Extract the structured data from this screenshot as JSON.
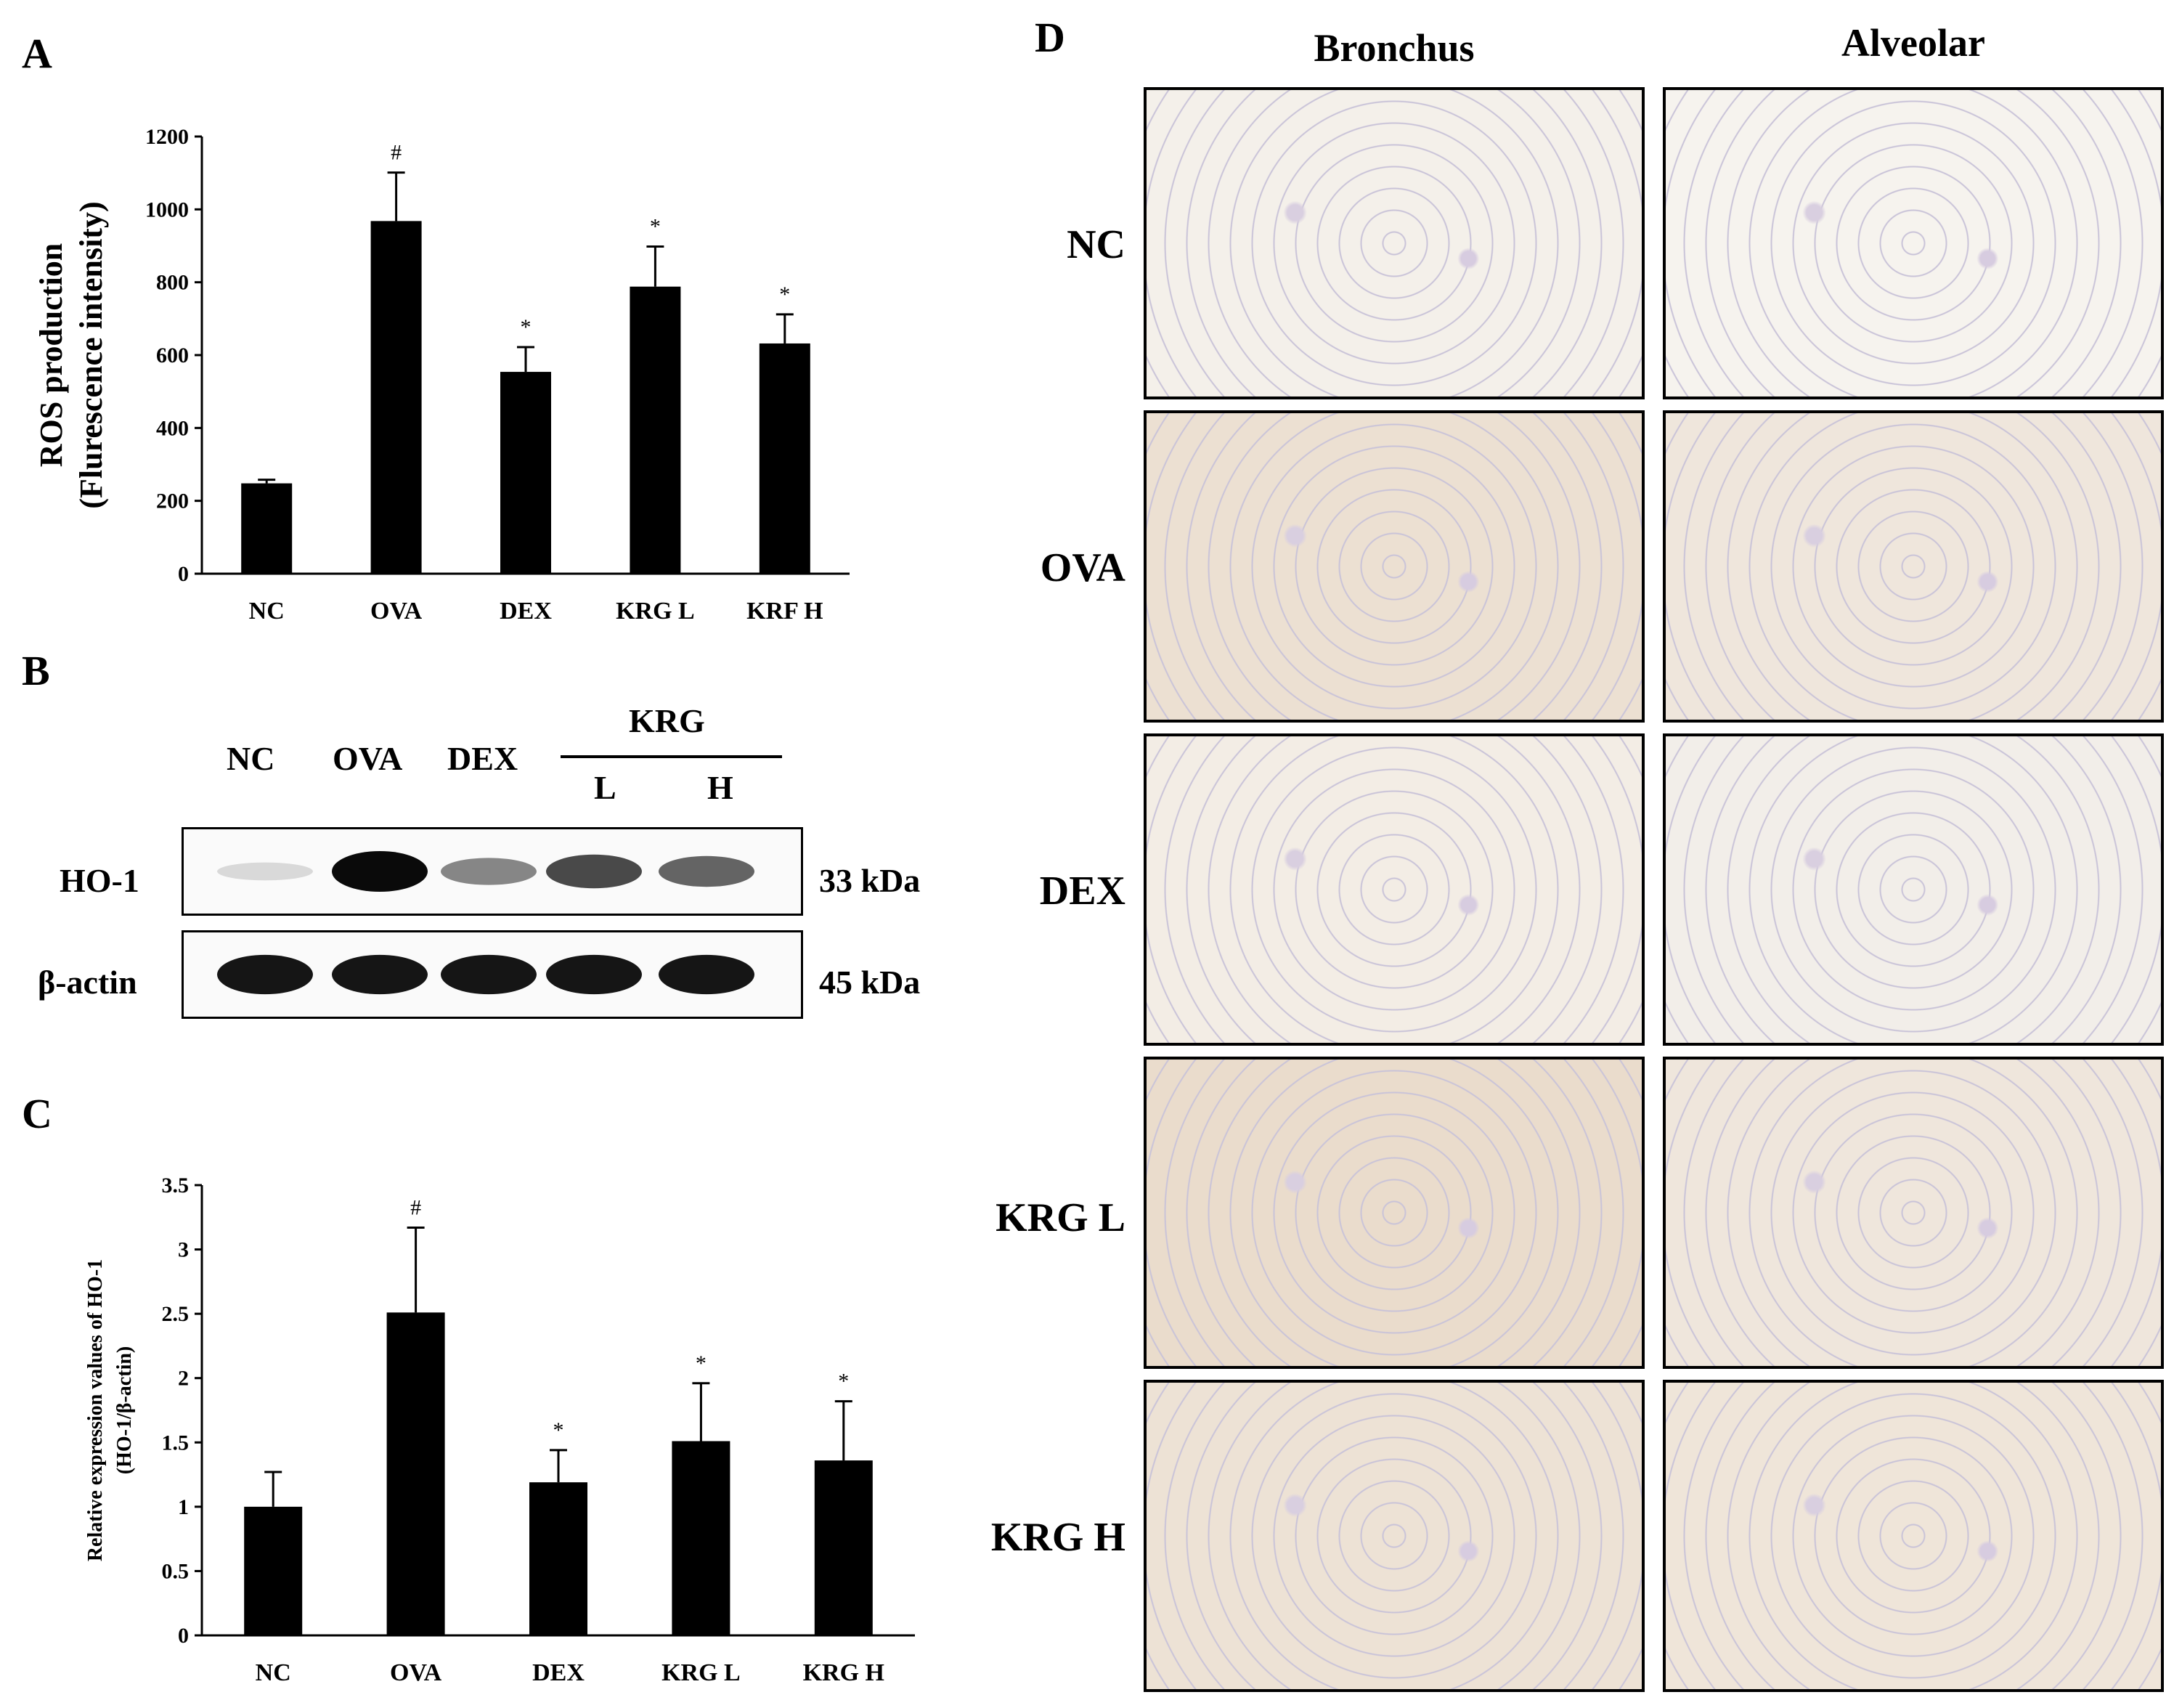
{
  "panels": {
    "A": "A",
    "B": "B",
    "C": "C",
    "D": "D"
  },
  "chart_data": [
    {
      "type": "bar",
      "panel": "A",
      "categories": [
        "NC",
        "OVA",
        "DEX",
        "KRG L",
        "KRF H"
      ],
      "values": [
        248,
        968,
        554,
        788,
        632
      ],
      "errors": [
        10,
        133,
        68,
        110,
        80
      ],
      "markers": [
        "",
        "#",
        "*",
        "*",
        "*"
      ],
      "ylabel_line1": "ROS production",
      "ylabel_line2": "(Flurescence intensity)",
      "ylim": [
        0,
        1200
      ],
      "yticks": [
        0,
        200,
        400,
        600,
        800,
        1000,
        1200
      ],
      "grid": false,
      "bar_color": "#000000"
    },
    {
      "type": "bar",
      "panel": "C",
      "categories": [
        "NC",
        "OVA",
        "DEX",
        "KRG L",
        "KRG H"
      ],
      "values": [
        1.0,
        2.51,
        1.19,
        1.51,
        1.36
      ],
      "errors": [
        0.27,
        0.66,
        0.25,
        0.45,
        0.46
      ],
      "markers": [
        "",
        "#",
        "*",
        "*",
        "*"
      ],
      "ylabel_line1": "Relative expression values of HO-1",
      "ylabel_line2": "(HO-1/β-actin)",
      "ylim": [
        0,
        3.5
      ],
      "yticks": [
        "0",
        "0.5",
        "1",
        "1.5",
        "2",
        "2.5",
        "3",
        "3.5"
      ],
      "grid": false,
      "bar_color": "#000000"
    }
  ],
  "blot": {
    "lanes": [
      "NC",
      "OVA",
      "DEX"
    ],
    "krg_label": "KRG",
    "krg_sub": [
      "L",
      "H"
    ],
    "rows": [
      {
        "label": "HO-1",
        "size": "33 kDa",
        "intensity": [
          0.08,
          1.0,
          0.45,
          0.72,
          0.6
        ]
      },
      {
        "label": "β-actin",
        "size": "45 kDa",
        "intensity": [
          0.95,
          0.95,
          0.95,
          0.95,
          0.95
        ]
      }
    ]
  },
  "histology": {
    "columns": [
      "Bronchus",
      "Alveolar"
    ],
    "rows": [
      "NC",
      "OVA",
      "DEX",
      "KRG L",
      "KRG H"
    ]
  }
}
